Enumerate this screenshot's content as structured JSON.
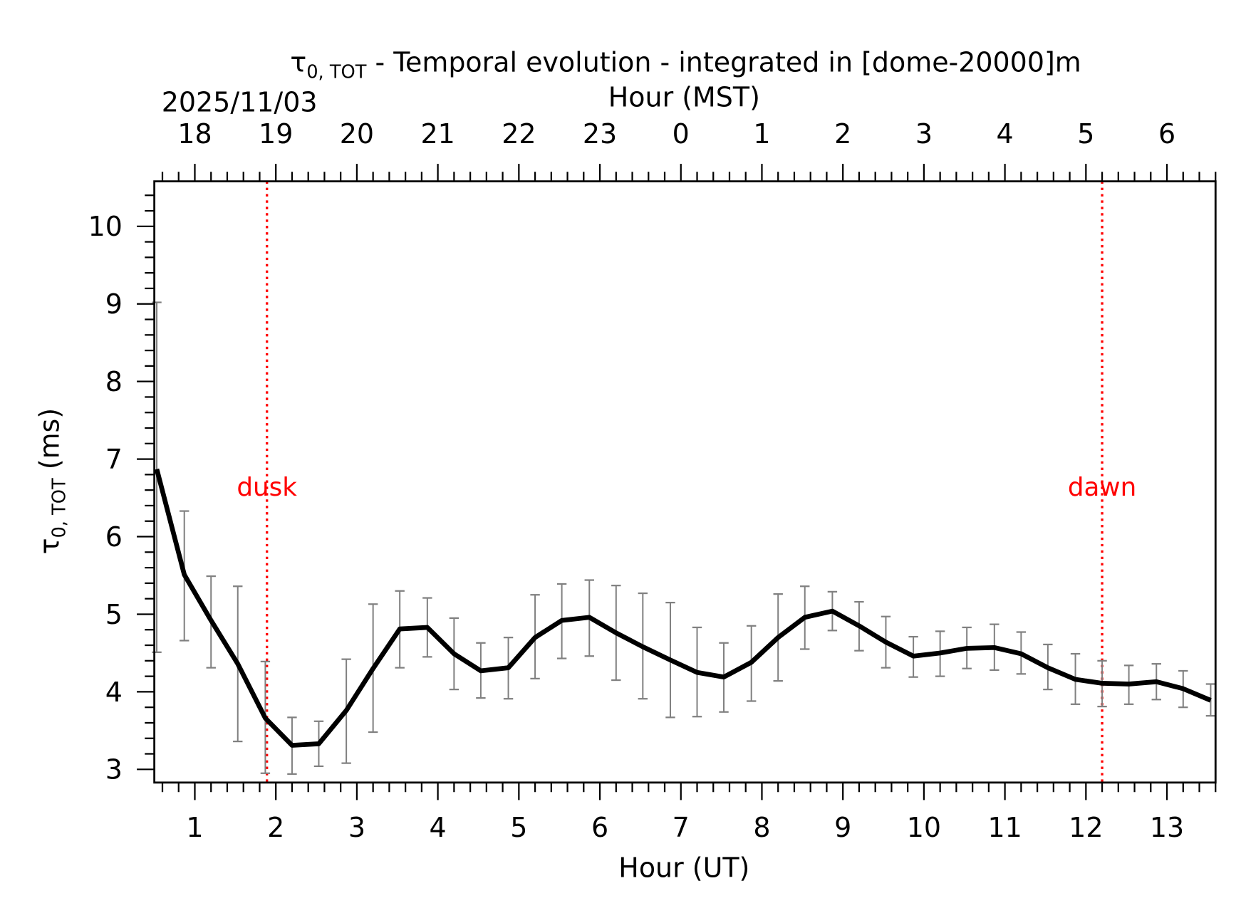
{
  "chart_data": {
    "type": "line",
    "title": {
      "symbol": "τ",
      "subscript": "0, TOT",
      "rest": " - Temporal evolution - integrated in [dome-20000]m"
    },
    "xlabel": "Hour (UT)",
    "x2label": "Hour (MST)",
    "date_label": "2025/11/03",
    "ylabel": {
      "symbol": "τ",
      "subscript": "0, TOT",
      "rest": " (ms)"
    },
    "xlim": [
      0.5,
      13.6
    ],
    "ylim": [
      2.83,
      10.58
    ],
    "x_ticks": [
      1,
      2,
      3,
      4,
      5,
      6,
      7,
      8,
      9,
      10,
      11,
      12,
      13
    ],
    "x_tick_labels": [
      "1",
      "2",
      "3",
      "4",
      "5",
      "6",
      "7",
      "8",
      "9",
      "10",
      "11",
      "12",
      "13"
    ],
    "x2_tick_labels": [
      "18",
      "19",
      "20",
      "21",
      "22",
      "23",
      "0",
      "1",
      "2",
      "3",
      "4",
      "5",
      "6"
    ],
    "y_ticks": [
      3,
      4,
      5,
      6,
      7,
      8,
      9,
      10
    ],
    "y_tick_labels": [
      "3",
      "4",
      "5",
      "6",
      "7",
      "8",
      "9",
      "10"
    ],
    "grid": false,
    "line_color": "#000000",
    "errorbar_color": "#808080",
    "marker_color": "#ff0000",
    "series": [
      {
        "x": [
          0.53,
          0.87,
          1.2,
          1.53,
          1.87,
          2.2,
          2.53,
          2.87,
          3.2,
          3.53,
          3.87,
          4.2,
          4.53,
          4.87,
          5.2,
          5.53,
          5.87,
          6.2,
          6.53,
          6.87,
          7.2,
          7.53,
          7.87,
          8.2,
          8.53,
          8.87,
          9.2,
          9.53,
          9.87,
          10.2,
          10.53,
          10.87,
          11.2,
          11.53,
          11.87,
          12.2,
          12.53,
          12.87,
          13.2,
          13.54
        ],
        "y": [
          6.87,
          5.51,
          4.92,
          4.36,
          3.66,
          3.31,
          3.33,
          3.76,
          4.3,
          4.81,
          4.83,
          4.49,
          4.27,
          4.31,
          4.7,
          4.92,
          4.96,
          4.76,
          4.58,
          4.41,
          4.25,
          4.19,
          4.38,
          4.7,
          4.96,
          5.04,
          4.85,
          4.64,
          4.46,
          4.5,
          4.56,
          4.57,
          4.49,
          4.31,
          4.16,
          4.11,
          4.1,
          4.13,
          4.04,
          3.89
        ],
        "y_upper": [
          9.02,
          6.33,
          5.49,
          5.36,
          4.39,
          3.67,
          3.62,
          4.42,
          5.13,
          5.3,
          5.21,
          4.95,
          4.63,
          4.7,
          5.25,
          5.39,
          5.44,
          5.37,
          5.27,
          5.15,
          4.83,
          4.63,
          4.85,
          5.26,
          5.36,
          5.29,
          5.16,
          4.97,
          4.71,
          4.78,
          4.83,
          4.87,
          4.77,
          4.61,
          4.49,
          4.4,
          4.34,
          4.36,
          4.27,
          4.1
        ],
        "y_lower": [
          4.51,
          4.66,
          4.31,
          3.36,
          2.95,
          2.94,
          3.04,
          3.08,
          3.48,
          4.31,
          4.45,
          4.03,
          3.92,
          3.91,
          4.17,
          4.43,
          4.46,
          4.15,
          3.91,
          3.67,
          3.68,
          3.74,
          3.88,
          4.14,
          4.55,
          4.79,
          4.53,
          4.31,
          4.19,
          4.2,
          4.3,
          4.28,
          4.23,
          4.03,
          3.84,
          3.81,
          3.84,
          3.9,
          3.8,
          3.69
        ]
      }
    ],
    "annotations": [
      {
        "label": "dusk",
        "x": 1.89,
        "y": 6.65
      },
      {
        "label": "dawn",
        "x": 12.2,
        "y": 6.65
      }
    ]
  }
}
